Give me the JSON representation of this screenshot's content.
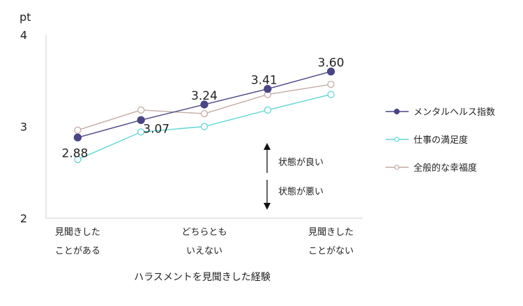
{
  "chart_data": {
    "type": "line",
    "y_unit": "pt",
    "ylim": [
      2,
      4
    ],
    "yticks": [
      2,
      3,
      4
    ],
    "x": [
      1,
      2,
      3,
      4,
      5
    ],
    "x_tick_labels": [
      {
        "x": 1,
        "lines": [
          "見聞きした",
          "ことがある"
        ]
      },
      {
        "x": 3,
        "lines": [
          "どちらとも",
          "いえない"
        ]
      },
      {
        "x": 5,
        "lines": [
          "見聞きした",
          "ことがない"
        ]
      }
    ],
    "xlabel": "ハラスメントを見聞きした経験",
    "grid": false,
    "legend_position": "right",
    "series": [
      {
        "name": "メンタルヘルス指数",
        "color": "#4a4585",
        "marker": "filled",
        "values": [
          2.88,
          3.07,
          3.24,
          3.41,
          3.6
        ],
        "labels": [
          "2.88",
          "3.07",
          "3.24",
          "3.41",
          "3.60"
        ]
      },
      {
        "name": "仕事の満足度",
        "color": "#5fd6d4",
        "marker": "hollow",
        "values": [
          2.64,
          2.94,
          3.0,
          3.18,
          3.35
        ]
      },
      {
        "name": "全般的な幸福度",
        "color": "#c4aaa3",
        "marker": "hollow",
        "values": [
          2.96,
          3.18,
          3.14,
          3.35,
          3.46
        ]
      }
    ],
    "annotations": {
      "better": "状態が良い",
      "worse": "状態が悪い"
    }
  }
}
